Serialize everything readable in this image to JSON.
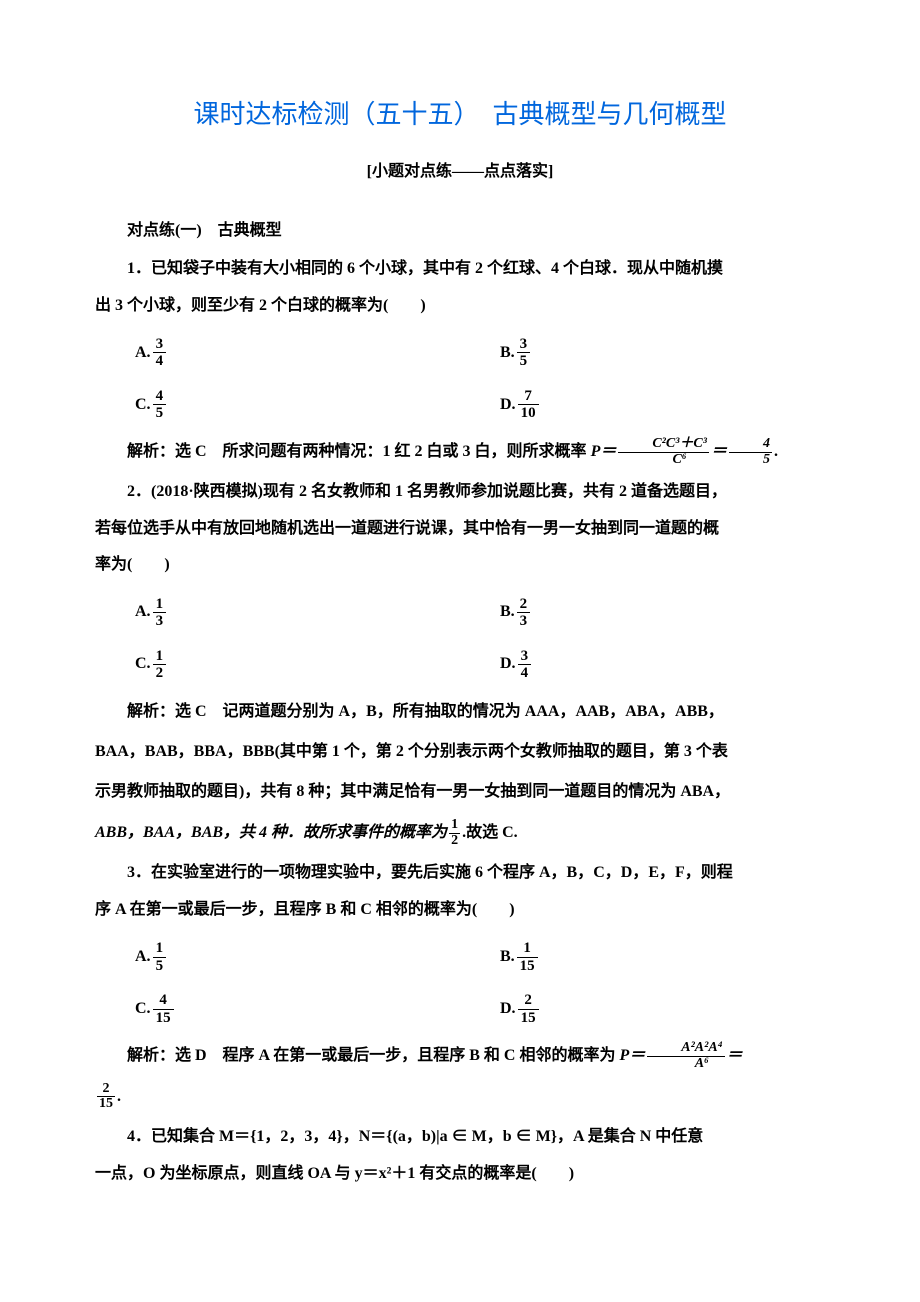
{
  "colors": {
    "title": "#0066dd",
    "text": "#000000",
    "background": "#ffffff"
  },
  "typography": {
    "body_font": "SimSun",
    "body_size_pt": 12,
    "title_size_pt": 20,
    "line_height": 1.9
  },
  "title": "课时达标检测（五十五）　古典概型与几何概型",
  "subtitle": "[小题对点练——点点落实]",
  "section1_label": "对点练(一)　古典概型",
  "q1": {
    "stem_a": "1．已知袋子中装有大小相同的 6 个小球，其中有 2 个红球、4 个白球．现从中随机摸",
    "stem_b": "出 3 个小球，则至少有 2 个白球的概率为(　　)",
    "opts": {
      "A_n": "3",
      "A_d": "4",
      "B_n": "3",
      "B_d": "5",
      "C_n": "4",
      "C_d": "5",
      "D_n": "7",
      "D_d": "10"
    },
    "soln_lead": "解析：选 C　所求问题有两种情况：1 红 2 白或 3 白，则所求概率 ",
    "soln_eq_prefix": "P＝",
    "soln_frac1_num": "C²C³＋C³",
    "soln_frac1_den": "C⁶",
    "soln_eq_mid": "＝",
    "soln_frac2_num": "4",
    "soln_frac2_den": "5",
    "soln_tail": "."
  },
  "q2": {
    "stem_a": "2．(2018·陕西模拟)现有 2 名女教师和 1 名男教师参加说题比赛，共有 2 道备选题目，",
    "stem_b": "若每位选手从中有放回地随机选出一道题进行说课，其中恰有一男一女抽到同一道题的概",
    "stem_c": "率为(　　)",
    "opts": {
      "A_n": "1",
      "A_d": "3",
      "B_n": "2",
      "B_d": "3",
      "C_n": "1",
      "C_d": "2",
      "D_n": "3",
      "D_d": "4"
    },
    "soln_a": "解析：选 C　记两道题分别为 A，B，所有抽取的情况为 AAA，AAB，ABA，ABB，",
    "soln_b": "BAA，BAB，BBA，BBB(其中第 1 个，第 2 个分别表示两个女教师抽取的题目，第 3 个表",
    "soln_c": "示男教师抽取的题目)，共有 8 种；其中满足恰有一男一女抽到同一道题目的情况为 ABA，",
    "soln_d_pre": "ABB，BAA，BAB，共 4 种．故所求事件的概率为",
    "soln_d_num": "1",
    "soln_d_den": "2",
    "soln_d_post": ".故选 C."
  },
  "q3": {
    "stem_a": "3．在实验室进行的一项物理实验中，要先后实施 6 个程序 A，B，C，D，E，F，则程",
    "stem_b": "序 A 在第一或最后一步，且程序 B 和 C 相邻的概率为(　　)",
    "opts": {
      "A_n": "1",
      "A_d": "5",
      "B_n": "1",
      "B_d": "15",
      "C_n": "4",
      "C_d": "15",
      "D_n": "2",
      "D_d": "15"
    },
    "soln_lead": "解析：选 D　程序 A 在第一或最后一步，且程序 B 和 C 相邻的概率为 ",
    "soln_eq_prefix": "P＝",
    "soln_frac1_num": "A²A²A⁴",
    "soln_frac1_den": "A⁶",
    "soln_eq_mid": "＝",
    "soln_cont_num": "2",
    "soln_cont_den": "15",
    "soln_cont_tail": "."
  },
  "q4": {
    "stem_a": "4．已知集合 M＝{1，2，3，4}，N＝{(a，b)|a ∈ M，b ∈ M}，A 是集合 N 中任意",
    "stem_b": "一点，O 为坐标原点，则直线 OA 与 y＝x²＋1 有交点的概率是(　　)"
  }
}
